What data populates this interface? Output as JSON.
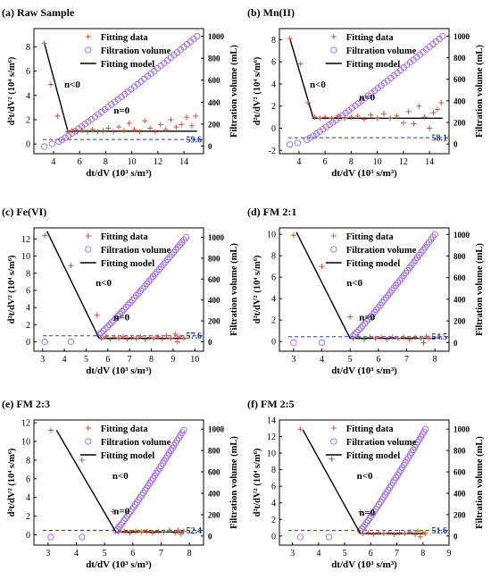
{
  "figure": {
    "colors": {
      "fitting_data": "#c8553d",
      "filtration_volume": "#9966ee",
      "fitting_model": "#000000",
      "dashed_line": "#1f3fbf",
      "dashed_label": "#1f2fa8"
    }
  },
  "chart_data": [
    {
      "type": "scatter",
      "title": "(a) Raw Sample",
      "xlabel": "dt/dV (10³ s/m³)",
      "ylabel": "d²t/dV² (10⁴ s/m⁶)",
      "y2label": "Filtration volume (mL)",
      "xlim": [
        2.5,
        15.5
      ],
      "ylim": [
        -0.8,
        9.5
      ],
      "y2lim": [
        -70,
        1070
      ],
      "xticks": [
        2,
        4,
        6,
        8,
        10,
        12,
        14
      ],
      "yticks": [
        0,
        2,
        4,
        6,
        8
      ],
      "y2ticks": [
        0,
        200,
        400,
        600,
        800,
        1000
      ],
      "legend": [
        "Fitting data",
        "Filtration volume",
        "Fitting model"
      ],
      "annotations": [
        "n<0",
        "n=0"
      ],
      "dashed_value": "59.6",
      "dashed_y2": 59.6,
      "fit_line": [
        [
          3.3,
          8.3
        ],
        [
          5.1,
          1.05
        ],
        [
          15,
          1.05
        ]
      ],
      "fitting_data": [
        [
          3.3,
          8.3
        ],
        [
          3.8,
          4.9
        ],
        [
          4.3,
          2.3
        ],
        [
          5.1,
          1.0
        ],
        [
          5.4,
          1.1
        ],
        [
          5.8,
          1.0
        ],
        [
          6.2,
          1.1
        ],
        [
          6.6,
          1.0
        ],
        [
          7.0,
          1.2
        ],
        [
          7.4,
          1.0
        ],
        [
          7.8,
          1.1
        ],
        [
          8.2,
          1.3
        ],
        [
          8.6,
          1.0
        ],
        [
          9.0,
          1.4
        ],
        [
          9.4,
          1.1
        ],
        [
          9.8,
          1.7
        ],
        [
          10.2,
          1.2
        ],
        [
          10.6,
          1.0
        ],
        [
          11.0,
          1.9
        ],
        [
          11.4,
          1.3
        ],
        [
          11.8,
          1.0
        ],
        [
          12.2,
          1.6
        ],
        [
          12.6,
          1.2
        ],
        [
          13.0,
          2.0
        ],
        [
          13.4,
          1.4
        ],
        [
          13.8,
          1.6
        ],
        [
          14.2,
          2.2
        ],
        [
          14.6,
          1.5
        ],
        [
          14.9,
          2.3
        ]
      ],
      "volume_start": [
        [
          3.3,
          -5
        ],
        [
          3.9,
          20
        ]
      ],
      "volume_line": [
        [
          4.4,
          40
        ],
        [
          15.0,
          1000
        ]
      ]
    },
    {
      "type": "scatter",
      "title": "(b) Mn(II)",
      "xlabel": "dt/dV (10³ s/m³)",
      "ylabel": "d²t/dV² (10⁴ s/m⁶)",
      "y2label": "Filtration volume (mL)",
      "xlim": [
        2.5,
        15.5
      ],
      "ylim": [
        -2.3,
        9.0
      ],
      "y2lim": [
        -90,
        1070
      ],
      "xticks": [
        2,
        4,
        6,
        8,
        10,
        12,
        14
      ],
      "yticks": [
        -2,
        0,
        2,
        4,
        6,
        8
      ],
      "y2ticks": [
        0,
        200,
        400,
        600,
        800,
        1000
      ],
      "legend": [
        "Fitting data",
        "Filtration volume",
        "Fitting model"
      ],
      "annotations": [
        "n<0",
        "n=0"
      ],
      "dashed_value": "58.1",
      "dashed_y2": 58.1,
      "fit_line": [
        [
          3.3,
          8.1
        ],
        [
          5.1,
          0.9
        ],
        [
          15,
          0.9
        ]
      ],
      "fitting_data": [
        [
          3.3,
          8.1
        ],
        [
          4.1,
          5.8
        ],
        [
          4.7,
          2.3
        ],
        [
          5.2,
          1.0
        ],
        [
          5.6,
          0.9
        ],
        [
          6.0,
          1.0
        ],
        [
          6.5,
          0.9
        ],
        [
          7.0,
          1.1
        ],
        [
          7.5,
          0.9
        ],
        [
          8.0,
          1.0
        ],
        [
          8.5,
          1.1
        ],
        [
          9.0,
          0.8
        ],
        [
          9.5,
          1.2
        ],
        [
          10.0,
          0.9
        ],
        [
          10.5,
          1.3
        ],
        [
          11.0,
          0.9
        ],
        [
          11.5,
          1.1
        ],
        [
          12.0,
          0.5
        ],
        [
          12.4,
          1.5
        ],
        [
          12.8,
          0.4
        ],
        [
          13.2,
          2.0
        ],
        [
          13.6,
          1.0
        ],
        [
          14.0,
          0.0
        ],
        [
          14.3,
          1.4
        ],
        [
          14.6,
          1.7
        ],
        [
          14.9,
          2.3
        ]
      ],
      "volume_start": [
        [
          3.3,
          -5
        ],
        [
          3.9,
          10
        ]
      ],
      "volume_line": [
        [
          4.6,
          40
        ],
        [
          15.0,
          1000
        ]
      ]
    },
    {
      "type": "scatter",
      "title": "(c) Fe(VI)",
      "xlabel": "dt/dV (10³ s/m³)",
      "ylabel": "d²t/dV² (10⁴ s/m⁶)",
      "y2label": "Filtration volume (mL)",
      "xlim": [
        2.6,
        10.4
      ],
      "ylim": [
        -1.1,
        13.3
      ],
      "y2lim": [
        -90,
        1090
      ],
      "xticks": [
        3,
        4,
        5,
        6,
        7,
        8,
        9,
        10
      ],
      "yticks": [
        0,
        2,
        4,
        6,
        8,
        10,
        12
      ],
      "y2ticks": [
        0,
        200,
        400,
        600,
        800,
        1000
      ],
      "legend": [
        "Fitting data",
        "Filtration volume",
        "Fitting model"
      ],
      "annotations": [
        "n<0",
        "n=0"
      ],
      "dashed_value": "57.6",
      "dashed_y2": 57.6,
      "fit_line": [
        [
          3.2,
          12.9
        ],
        [
          5.6,
          0.4
        ],
        [
          9.6,
          0.4
        ]
      ],
      "fitting_data": [
        [
          3.1,
          12.4
        ],
        [
          4.3,
          8.9
        ],
        [
          5.5,
          3.1
        ],
        [
          5.7,
          0.4
        ],
        [
          5.9,
          0.6
        ],
        [
          6.1,
          0.3
        ],
        [
          6.3,
          0.5
        ],
        [
          6.5,
          0.4
        ],
        [
          6.7,
          0.6
        ],
        [
          6.9,
          0.3
        ],
        [
          7.1,
          0.5
        ],
        [
          7.3,
          0.4
        ],
        [
          7.5,
          0.6
        ],
        [
          7.7,
          0.3
        ],
        [
          7.9,
          0.5
        ],
        [
          8.1,
          0.4
        ],
        [
          8.3,
          0.6
        ],
        [
          8.5,
          0.3
        ],
        [
          8.7,
          0.7
        ],
        [
          8.9,
          0.4
        ],
        [
          9.1,
          0.9
        ],
        [
          9.2,
          0.0
        ],
        [
          9.3,
          0.6
        ],
        [
          9.5,
          0.4
        ]
      ],
      "volume_start": [
        [
          3.1,
          0
        ],
        [
          4.3,
          0
        ]
      ],
      "volume_line": [
        [
          5.6,
          70
        ],
        [
          9.6,
          1000
        ]
      ]
    },
    {
      "type": "scatter",
      "title": "(d) FM 2:1",
      "xlabel": "dt/dV (10³ s/m³)",
      "ylabel": "d²t/dV² (10⁴ s/m⁶)",
      "y2label": "Filtration volume (mL)",
      "xlim": [
        2.5,
        8.5
      ],
      "ylim": [
        -0.9,
        10.6
      ],
      "y2lim": [
        -80,
        1060
      ],
      "xticks": [
        3,
        4,
        5,
        6,
        7,
        8
      ],
      "yticks": [
        0,
        2,
        4,
        6,
        8,
        10
      ],
      "y2ticks": [
        0,
        200,
        400,
        600,
        800,
        1000
      ],
      "legend": [
        "Fitting data",
        "Filtration volume",
        "Fitting model"
      ],
      "annotations": [
        "n<0",
        "n=0"
      ],
      "dashed_value": "54.5",
      "dashed_y2": 54.5,
      "fit_line": [
        [
          3.1,
          10.2
        ],
        [
          5.0,
          0.3
        ],
        [
          8.0,
          0.3
        ]
      ],
      "fitting_data": [
        [
          3.0,
          9.9
        ],
        [
          4.0,
          7.0
        ],
        [
          5.0,
          2.3
        ],
        [
          5.1,
          0.3
        ],
        [
          5.3,
          0.4
        ],
        [
          5.5,
          0.2
        ],
        [
          5.7,
          0.4
        ],
        [
          5.9,
          0.3
        ],
        [
          6.1,
          0.4
        ],
        [
          6.3,
          0.2
        ],
        [
          6.5,
          0.4
        ],
        [
          6.7,
          0.3
        ],
        [
          6.9,
          0.4
        ],
        [
          7.1,
          0.2
        ],
        [
          7.3,
          0.4
        ],
        [
          7.5,
          0.3
        ],
        [
          7.6,
          -0.1
        ],
        [
          7.7,
          0.5
        ],
        [
          7.8,
          0.3
        ]
      ],
      "volume_start": [
        [
          3.0,
          0
        ],
        [
          4.0,
          0
        ]
      ],
      "volume_line": [
        [
          5.1,
          60
        ],
        [
          8.0,
          1000
        ]
      ]
    },
    {
      "type": "scatter",
      "title": "(e) FM 2:3",
      "xlabel": "dt/dV (10³ s/m³)",
      "ylabel": "d²t/dV² (10⁴ s/m⁶)",
      "y2label": "Filtration volume (mL)",
      "xlim": [
        2.5,
        8.5
      ],
      "ylim": [
        -1.1,
        12.3
      ],
      "y2lim": [
        -85,
        1085
      ],
      "xticks": [
        3,
        4,
        5,
        6,
        7,
        8
      ],
      "yticks": [
        0,
        2,
        4,
        6,
        8,
        10,
        12
      ],
      "y2ticks": [
        0,
        200,
        400,
        600,
        800,
        1000
      ],
      "legend": [
        "Fitting data",
        "Filtration volume",
        "Fitting model"
      ],
      "annotations": [
        "n<0",
        "n=0"
      ],
      "dashed_value": "52.4",
      "dashed_y2": 52.4,
      "fit_line": [
        [
          3.3,
          11.2
        ],
        [
          5.4,
          0.3
        ],
        [
          7.8,
          0.3
        ]
      ],
      "fitting_data": [
        [
          3.1,
          11.2
        ],
        [
          4.2,
          8.0
        ],
        [
          5.3,
          2.5
        ],
        [
          5.5,
          0.3
        ],
        [
          5.7,
          0.4
        ],
        [
          5.9,
          0.2
        ],
        [
          6.1,
          0.4
        ],
        [
          6.3,
          0.3
        ],
        [
          6.5,
          0.4
        ],
        [
          6.7,
          0.2
        ],
        [
          6.9,
          0.4
        ],
        [
          7.1,
          0.3
        ],
        [
          7.3,
          0.5
        ],
        [
          7.5,
          0.2
        ],
        [
          7.6,
          0.5
        ],
        [
          7.7,
          0.1
        ],
        [
          7.8,
          0.4
        ]
      ],
      "volume_start": [
        [
          3.1,
          -10
        ],
        [
          4.2,
          -10
        ]
      ],
      "volume_line": [
        [
          5.4,
          50
        ],
        [
          7.8,
          990
        ]
      ]
    },
    {
      "type": "scatter",
      "title": "(f) FM 2:5",
      "xlabel": "dt/dV (10³ s/m³)",
      "ylabel": "d²t/dV² (10⁴ s/m⁶)",
      "y2label": "Filtration volume (mL)",
      "xlim": [
        2.5,
        9.0
      ],
      "ylim": [
        -1.1,
        14.0
      ],
      "y2lim": [
        -85,
        1085
      ],
      "xticks": [
        3,
        4,
        5,
        6,
        7,
        8,
        9
      ],
      "yticks": [
        0,
        2,
        4,
        6,
        8,
        10,
        12,
        14
      ],
      "y2ticks": [
        0,
        200,
        400,
        600,
        800,
        1000
      ],
      "legend": [
        "Fitting data",
        "Filtration volume",
        "Fitting model"
      ],
      "annotations": [
        "n<0",
        "n=0"
      ],
      "dashed_value": "51.6",
      "dashed_y2": 51.6,
      "fit_line": [
        [
          3.4,
          12.8
        ],
        [
          5.6,
          0.3
        ],
        [
          8.1,
          0.3
        ]
      ],
      "fitting_data": [
        [
          3.3,
          12.9
        ],
        [
          4.5,
          9.3
        ],
        [
          5.6,
          2.9
        ],
        [
          5.7,
          0.3
        ],
        [
          5.9,
          0.4
        ],
        [
          6.1,
          0.2
        ],
        [
          6.3,
          0.4
        ],
        [
          6.5,
          0.3
        ],
        [
          6.7,
          0.4
        ],
        [
          6.9,
          0.2
        ],
        [
          7.1,
          0.4
        ],
        [
          7.3,
          0.3
        ],
        [
          7.5,
          0.5
        ],
        [
          7.7,
          0.2
        ],
        [
          7.8,
          0.6
        ],
        [
          7.9,
          -0.1
        ],
        [
          8.0,
          0.4
        ],
        [
          8.1,
          0.3
        ]
      ],
      "volume_start": [
        [
          3.3,
          -10
        ],
        [
          4.4,
          -10
        ]
      ],
      "volume_line": [
        [
          5.6,
          50
        ],
        [
          8.1,
          1000
        ]
      ]
    }
  ]
}
